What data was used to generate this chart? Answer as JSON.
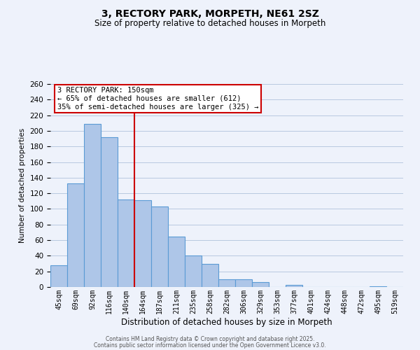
{
  "title": "3, RECTORY PARK, MORPETH, NE61 2SZ",
  "subtitle": "Size of property relative to detached houses in Morpeth",
  "xlabel": "Distribution of detached houses by size in Morpeth",
  "ylabel": "Number of detached properties",
  "bar_labels": [
    "45sqm",
    "69sqm",
    "92sqm",
    "116sqm",
    "140sqm",
    "164sqm",
    "187sqm",
    "211sqm",
    "235sqm",
    "258sqm",
    "282sqm",
    "306sqm",
    "329sqm",
    "353sqm",
    "377sqm",
    "401sqm",
    "424sqm",
    "448sqm",
    "472sqm",
    "495sqm",
    "519sqm"
  ],
  "bar_values": [
    28,
    133,
    209,
    192,
    112,
    111,
    103,
    65,
    40,
    30,
    10,
    10,
    6,
    0,
    3,
    0,
    0,
    0,
    0,
    1,
    0
  ],
  "bar_color": "#aec6e8",
  "bar_edge_color": "#5b9bd5",
  "ylim": [
    0,
    260
  ],
  "yticks": [
    0,
    20,
    40,
    60,
    80,
    100,
    120,
    140,
    160,
    180,
    200,
    220,
    240,
    260
  ],
  "vline_x_index": 4.5,
  "vline_color": "#cc0000",
  "annotation_title": "3 RECTORY PARK: 150sqm",
  "annotation_line1": "← 65% of detached houses are smaller (612)",
  "annotation_line2": "35% of semi-detached houses are larger (325) →",
  "annotation_box_color": "#ffffff",
  "annotation_box_edge": "#cc0000",
  "background_color": "#eef2fb",
  "grid_color": "#b8c8e0",
  "footer1": "Contains HM Land Registry data © Crown copyright and database right 2025.",
  "footer2": "Contains public sector information licensed under the Open Government Licence v3.0."
}
